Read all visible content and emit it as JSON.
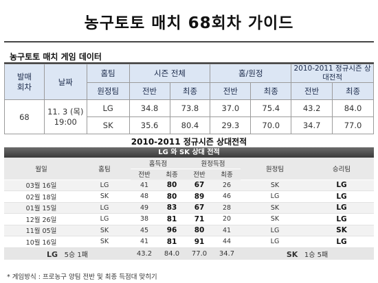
{
  "title": "농구토토 매치 68회차 가이드",
  "section_label": "농구토토 매치 게임 데이터",
  "game_table": {
    "headers": {
      "round": "발매\n회차",
      "date": "날짜",
      "home": "홈팀",
      "away": "원정팀",
      "season_total": "시즌 전체",
      "home_away": "홈/원정",
      "h2h": "2010-2011 정규시즌 상대전적",
      "first_half": "전반",
      "final": "최종"
    },
    "round": "68",
    "date": "11. 3 (목)",
    "time": "19:00",
    "rows": [
      {
        "team": "LG",
        "season_first": "34.8",
        "season_final": "73.8",
        "ha_first": "37.0",
        "ha_final": "75.4",
        "h2h_first": "43.2",
        "h2h_final": "84.0"
      },
      {
        "team": "SK",
        "season_first": "35.6",
        "season_final": "80.4",
        "ha_first": "29.3",
        "ha_final": "70.0",
        "h2h_first": "34.7",
        "h2h_final": "77.0"
      }
    ]
  },
  "subtitle": "2010-2011 정규시즌 상대전적",
  "banner": "LG 와 SK 상대 전적",
  "record_table": {
    "headers": {
      "date": "월일",
      "home": "홈팀",
      "home_score": "홈득점",
      "away_score": "원정득점",
      "away": "원정팀",
      "winner": "승리팀",
      "first_half": "전반",
      "final": "최종"
    },
    "rows": [
      {
        "date": "03월 16일",
        "home": "LG",
        "hf": "41",
        "hs": "80",
        "af": "67",
        "as": "26",
        "away": "SK",
        "winner": "LG"
      },
      {
        "date": "02월 18일",
        "home": "SK",
        "hf": "48",
        "hs": "80",
        "af": "89",
        "as": "46",
        "away": "LG",
        "winner": "LG"
      },
      {
        "date": "01월 15일",
        "home": "LG",
        "hf": "49",
        "hs": "83",
        "af": "67",
        "as": "28",
        "away": "SK",
        "winner": "LG"
      },
      {
        "date": "12월 26일",
        "home": "LG",
        "hf": "38",
        "hs": "81",
        "af": "71",
        "as": "20",
        "away": "SK",
        "winner": "LG"
      },
      {
        "date": "11월 05일",
        "home": "SK",
        "hf": "45",
        "hs": "96",
        "af": "80",
        "as": "41",
        "away": "LG",
        "winner": "SK"
      },
      {
        "date": "10월 16일",
        "home": "SK",
        "hf": "41",
        "hs": "81",
        "af": "91",
        "as": "44",
        "away": "LG",
        "winner": "LG"
      }
    ],
    "total": {
      "team_left": "LG",
      "record_left": "5승 1패",
      "v1": "43.2",
      "v2": "84.0",
      "v3": "77.0",
      "v4": "34.7",
      "team_right": "SK",
      "record_right": "1승 5패"
    }
  },
  "footnote": "* 게임방식 : 프로농구 양팀 전반 및 최종 득점대 맞히기"
}
